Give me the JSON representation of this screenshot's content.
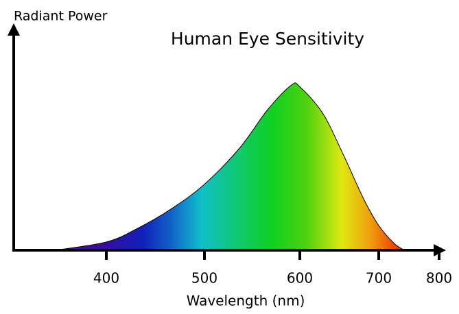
{
  "chart_data": {
    "type": "area",
    "title": "Human Eye Sensitivity",
    "ylabel": "Radiant Power",
    "xlabel": "Wavelength (nm)",
    "x": [
      348,
      400,
      431,
      466,
      500,
      537,
      566,
      591,
      600,
      629,
      655,
      681,
      700,
      726,
      743
    ],
    "values": [
      0,
      5,
      13,
      25,
      40,
      62,
      85,
      100,
      99,
      83,
      58,
      31,
      15,
      4,
      0
    ],
    "ylim": [
      0,
      135
    ],
    "xticks": [
      400,
      500,
      600,
      700,
      800
    ]
  }
}
